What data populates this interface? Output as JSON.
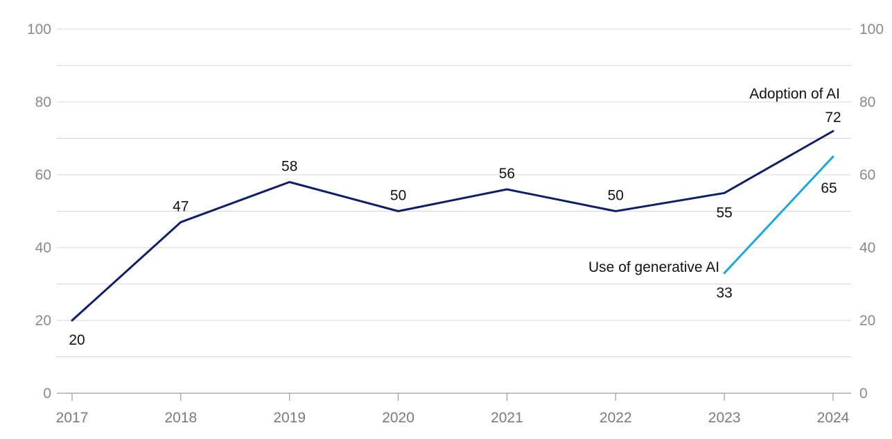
{
  "chart_data": {
    "type": "line",
    "title": "",
    "xlabel": "",
    "ylabel": "",
    "ylim": [
      0,
      100
    ],
    "y_ticks": [
      0,
      20,
      40,
      60,
      80,
      100
    ],
    "y_ticks_right": true,
    "grid": true,
    "categories": [
      "2017",
      "2018",
      "2019",
      "2020",
      "2021",
      "2022",
      "2023",
      "2024"
    ],
    "series": [
      {
        "name": "Adoption of AI",
        "color": "#0d1f66",
        "x": [
          "2017",
          "2018",
          "2019",
          "2020",
          "2021",
          "2022",
          "2023",
          "2024"
        ],
        "values": [
          20,
          47,
          58,
          50,
          56,
          50,
          55,
          72
        ]
      },
      {
        "name": "Use of generative AI",
        "color": "#1aa6e0",
        "x": [
          "2023",
          "2024"
        ],
        "values": [
          33,
          65
        ]
      }
    ]
  }
}
